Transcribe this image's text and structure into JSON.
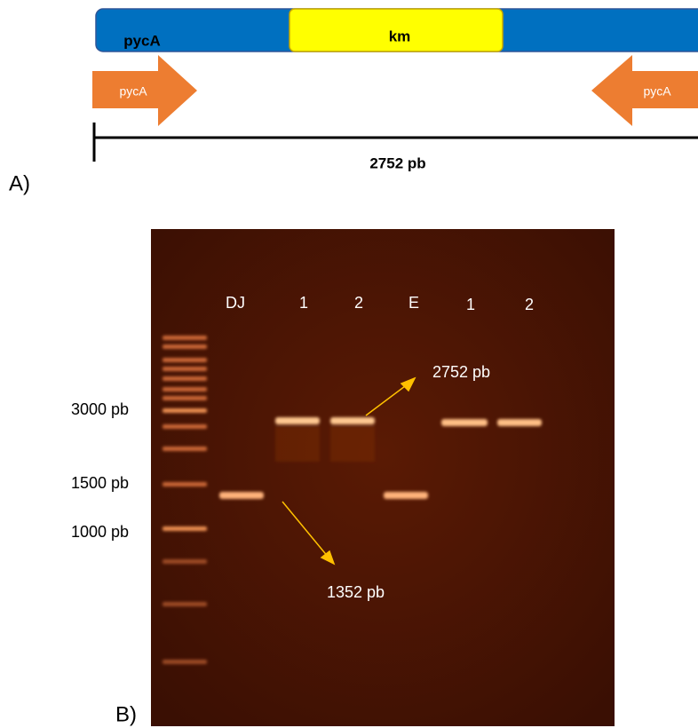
{
  "panel_a": {
    "label": "A)",
    "gene_bar": {
      "left_label": "pycA",
      "insert_label": "km"
    },
    "primers": {
      "left": "pycA",
      "right": "pycA"
    },
    "size": "2752 pb"
  },
  "panel_b": {
    "label": "B)",
    "lanes": [
      "DJ",
      "1",
      "2",
      "E",
      "1",
      "2"
    ],
    "markers": [
      "3000 pb",
      "1500 pb",
      "1000 pb"
    ],
    "annotations": [
      "2752 pb",
      "1352 pb"
    ]
  }
}
